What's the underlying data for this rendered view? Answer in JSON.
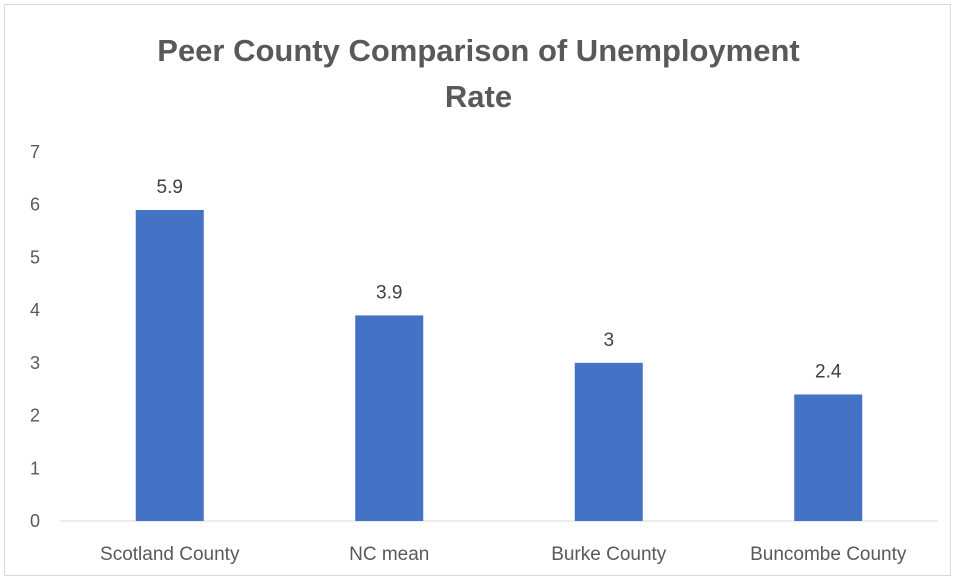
{
  "chart_data": {
    "type": "bar",
    "title_lines": [
      "Peer County Comparison of Unemployment",
      "Rate"
    ],
    "categories": [
      "Scotland County",
      "NC mean",
      "Burke County",
      "Buncombe County"
    ],
    "values": [
      5.9,
      3.9,
      3,
      2.4
    ],
    "data_labels": [
      "5.9",
      "3.9",
      "3",
      "2.4"
    ],
    "yticks": [
      "0",
      "1",
      "2",
      "3",
      "4",
      "5",
      "6",
      "7"
    ],
    "ylim": [
      0,
      7
    ],
    "grid": false,
    "legend": "none",
    "bar_color": "#4472C4"
  }
}
